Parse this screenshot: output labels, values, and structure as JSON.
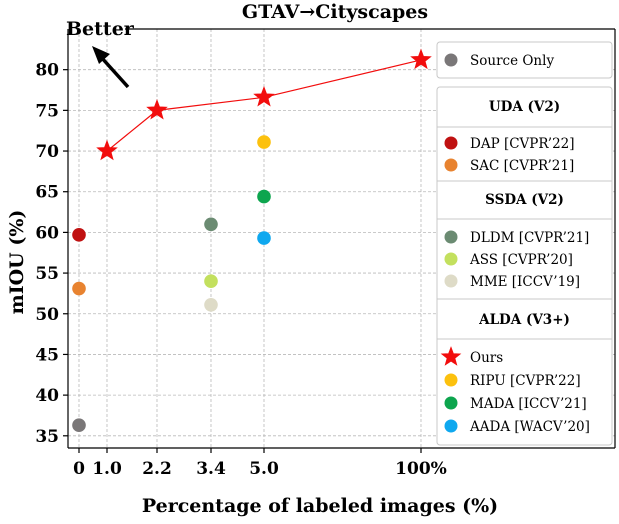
{
  "chart_data": {
    "type": "scatter",
    "title": "GTAV→Cityscapes",
    "xlabel": "Percentage of labeled images (%)",
    "ylabel": "mIOU (%)",
    "annotation": "Better",
    "xticks": [
      "0",
      "1.0",
      "2.2",
      "3.4",
      "5.0",
      "100%"
    ],
    "yticks": [
      35,
      40,
      45,
      50,
      55,
      60,
      65,
      70,
      75,
      80
    ],
    "ylim": [
      33.5,
      85
    ],
    "grid": true,
    "legend_position": "right",
    "series": [
      {
        "name": "Source Only",
        "group": "",
        "marker": "circle",
        "color": "#7a7778",
        "points": [
          {
            "x": "0",
            "y": 36.3
          }
        ]
      },
      {
        "name": "DAP [CVPR’22]",
        "group": "UDA (V2)",
        "marker": "circle",
        "color": "#c01111",
        "points": [
          {
            "x": "0",
            "y": 59.7
          }
        ]
      },
      {
        "name": "SAC [CVPR’21]",
        "group": "UDA (V2)",
        "marker": "circle",
        "color": "#e88330",
        "points": [
          {
            "x": "0",
            "y": 53.1
          }
        ]
      },
      {
        "name": "DLDM [CVPR’21]",
        "group": "SSDA (V2)",
        "marker": "circle",
        "color": "#6b8b72",
        "points": [
          {
            "x": "3.4",
            "y": 61.0
          }
        ]
      },
      {
        "name": "ASS [CVPR’20]",
        "group": "SSDA (V2)",
        "marker": "circle",
        "color": "#c3e05e",
        "points": [
          {
            "x": "3.4",
            "y": 54.0
          }
        ]
      },
      {
        "name": "MME [ICCV’19]",
        "group": "SSDA (V2)",
        "marker": "circle",
        "color": "#dedbc7",
        "points": [
          {
            "x": "3.4",
            "y": 51.1
          }
        ]
      },
      {
        "name": "Ours",
        "group": "ALDA (V3+)",
        "marker": "star",
        "color": "#f20d0d",
        "line": true,
        "points": [
          {
            "x": "1.0",
            "y": 70.0
          },
          {
            "x": "2.2",
            "y": 75.0
          },
          {
            "x": "5.0",
            "y": 76.6
          },
          {
            "x": "100%",
            "y": 81.2
          }
        ]
      },
      {
        "name": "RIPU [CVPR’22]",
        "group": "ALDA (V3+)",
        "marker": "circle",
        "color": "#fcc10e",
        "points": [
          {
            "x": "5.0",
            "y": 71.1
          }
        ]
      },
      {
        "name": "MADA [ICCV’21]",
        "group": "ALDA (V3+)",
        "marker": "circle",
        "color": "#0da54e",
        "points": [
          {
            "x": "5.0",
            "y": 64.4
          }
        ]
      },
      {
        "name": "AADA [WACV’20]",
        "group": "ALDA (V3+)",
        "marker": "circle",
        "color": "#0fa8ef",
        "points": [
          {
            "x": "5.0",
            "y": 59.3
          }
        ]
      }
    ],
    "legend_groups": [
      "UDA (V2)",
      "SSDA (V2)",
      "ALDA (V3+)"
    ]
  }
}
